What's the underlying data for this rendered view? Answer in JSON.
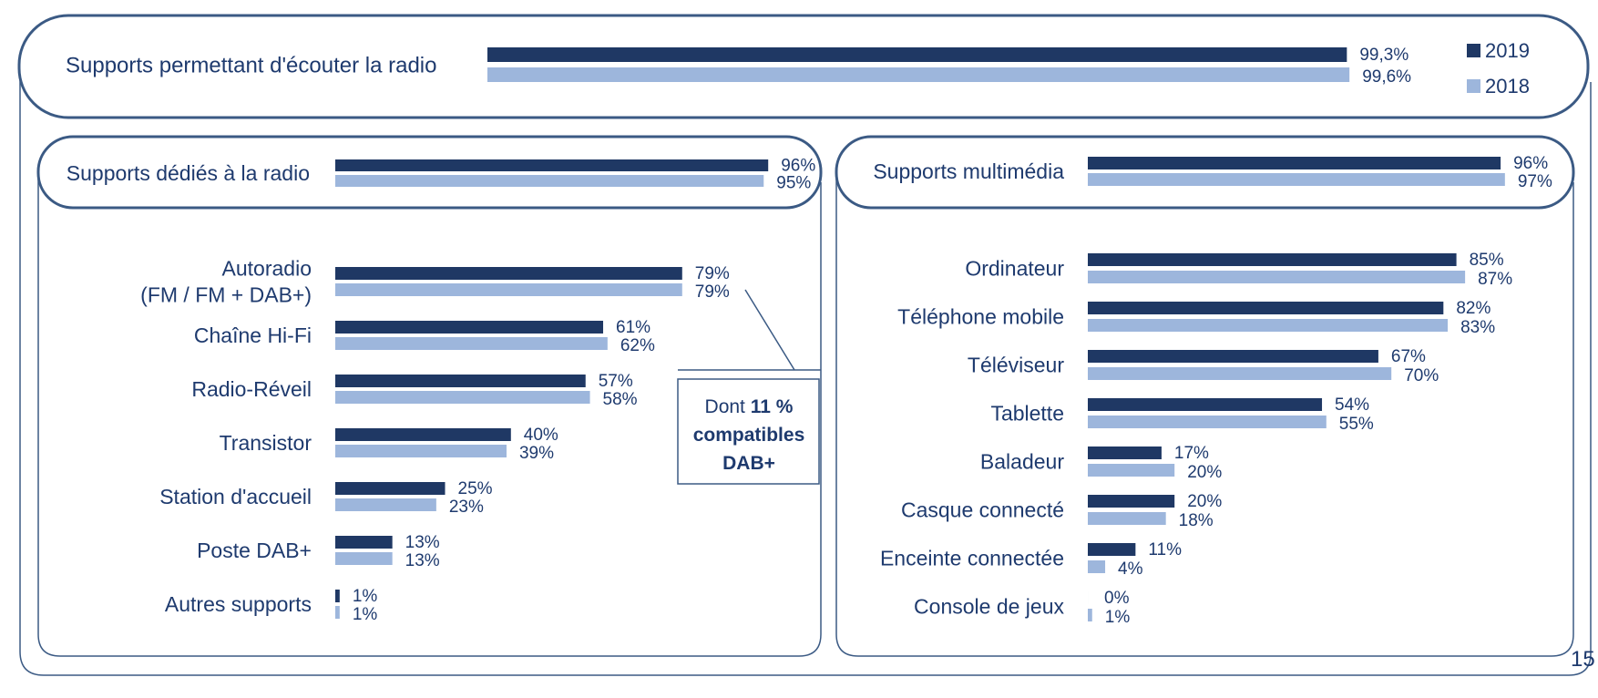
{
  "chart_data": [
    {
      "type": "bar",
      "legend_position": "right",
      "categories": [
        "Supports permettant d'écouter la radio"
      ],
      "series": [
        {
          "name": "2019",
          "color": "#1f3864",
          "values": [
            99.3
          ],
          "labels": [
            "99,3%"
          ]
        },
        {
          "name": "2018",
          "color": "#9db6dc",
          "values": [
            99.6
          ],
          "labels": [
            "99,6%"
          ]
        }
      ]
    },
    {
      "type": "bar",
      "categories": [
        "Supports dédiés à la radio"
      ],
      "series": [
        {
          "name": "2019",
          "color": "#1f3864",
          "values": [
            96
          ],
          "labels": [
            "96%"
          ]
        },
        {
          "name": "2018",
          "color": "#9db6dc",
          "values": [
            95
          ],
          "labels": [
            "95%"
          ]
        }
      ]
    },
    {
      "type": "bar",
      "categories": [
        "Autoradio\n(FM / FM + DAB+)",
        "Chaîne Hi-Fi",
        "Radio-Réveil",
        "Transistor",
        "Station d'accueil",
        "Poste DAB+",
        "Autres supports"
      ],
      "series": [
        {
          "name": "2019",
          "color": "#1f3864",
          "values": [
            79,
            61,
            57,
            40,
            25,
            13,
            1
          ],
          "labels": [
            "79%",
            "61%",
            "57%",
            "40%",
            "25%",
            "13%",
            "1%"
          ]
        },
        {
          "name": "2018",
          "color": "#9db6dc",
          "values": [
            79,
            62,
            58,
            39,
            23,
            13,
            1
          ],
          "labels": [
            "79%",
            "62%",
            "58%",
            "39%",
            "23%",
            "13%",
            "1%"
          ]
        }
      ],
      "annotation": {
        "pre": "Dont ",
        "bold": "11 %",
        "line2": "compatibles",
        "line3": "DAB+"
      }
    },
    {
      "type": "bar",
      "categories": [
        "Supports multimédia"
      ],
      "series": [
        {
          "name": "2019",
          "color": "#1f3864",
          "values": [
            96
          ],
          "labels": [
            "96%"
          ]
        },
        {
          "name": "2018",
          "color": "#9db6dc",
          "values": [
            97
          ],
          "labels": [
            "97%"
          ]
        }
      ]
    },
    {
      "type": "bar",
      "categories": [
        "Ordinateur",
        "Téléphone mobile",
        "Téléviseur",
        "Tablette",
        "Baladeur",
        "Casque connecté",
        "Enceinte connectée",
        "Console de jeux"
      ],
      "series": [
        {
          "name": "2019",
          "color": "#1f3864",
          "values": [
            85,
            82,
            67,
            54,
            17,
            20,
            11,
            0
          ],
          "labels": [
            "85%",
            "82%",
            "67%",
            "54%",
            "17%",
            "20%",
            "11%",
            "0%"
          ]
        },
        {
          "name": "2018",
          "color": "#9db6dc",
          "values": [
            87,
            83,
            70,
            55,
            20,
            18,
            4,
            1
          ],
          "labels": [
            "87%",
            "83%",
            "70%",
            "55%",
            "20%",
            "18%",
            "4%",
            "1%"
          ]
        }
      ]
    }
  ],
  "page_number": "15"
}
